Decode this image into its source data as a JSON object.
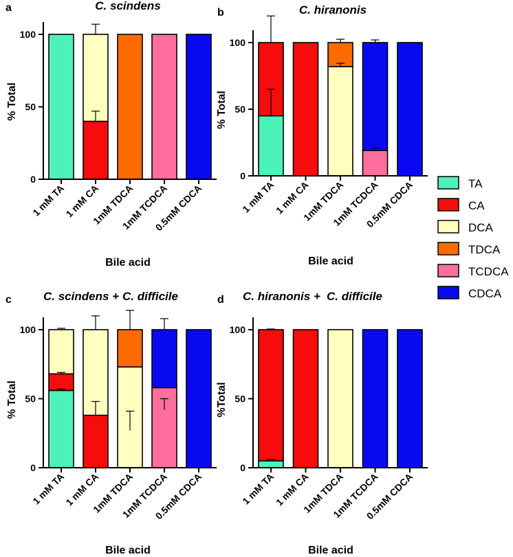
{
  "legend": [
    {
      "name": "TA",
      "color": "#4CF2B8"
    },
    {
      "name": "CA",
      "color": "#F50D0D"
    },
    {
      "name": "DCA",
      "color": "#FFFFBF"
    },
    {
      "name": "TDCA",
      "color": "#FF6A00"
    },
    {
      "name": "TCDCA",
      "color": "#FF6E9C"
    },
    {
      "name": "CDCA",
      "color": "#0A0AF2"
    }
  ],
  "chart_data": [
    {
      "type": "bar",
      "stacked": true,
      "panel": "a",
      "title": "C. scindens",
      "xlabel": "Bile acid",
      "ylabel": "% Total",
      "ylim": [
        0,
        100
      ],
      "yticks": [
        "0",
        "50",
        "100"
      ],
      "categories": [
        "1 mM TA",
        "1 mM CA",
        "1mM TDCA",
        "1mM TCDCA",
        "0.5mM CDCA"
      ],
      "series": [
        {
          "name": "TA",
          "values": [
            100,
            0,
            0,
            0,
            0
          ]
        },
        {
          "name": "CA",
          "values": [
            0,
            40,
            0,
            0,
            0
          ]
        },
        {
          "name": "DCA",
          "values": [
            0,
            60,
            0,
            0,
            0
          ]
        },
        {
          "name": "TDCA",
          "values": [
            0,
            0,
            100,
            0,
            0
          ]
        },
        {
          "name": "TCDCA",
          "values": [
            0,
            0,
            0,
            100,
            0
          ]
        },
        {
          "name": "CDCA",
          "values": [
            0,
            0,
            0,
            0,
            100
          ]
        }
      ],
      "errors": [
        {
          "category": 1,
          "value": 40,
          "err": 7
        },
        {
          "category": 1,
          "value": 100,
          "err": 7
        }
      ]
    },
    {
      "type": "bar",
      "stacked": true,
      "panel": "b",
      "title": "C. hiranonis",
      "xlabel": "Bile acid",
      "ylabel": "% Total",
      "ylim": [
        0,
        100
      ],
      "yticks": [
        "0",
        "50",
        "100"
      ],
      "categories": [
        "1 mM TA",
        "1 mM CA",
        "1mM TDCA",
        "1mM TCDCA",
        "0.5mM CDCA"
      ],
      "series": [
        {
          "name": "TA",
          "values": [
            45,
            0,
            0,
            0,
            0
          ]
        },
        {
          "name": "CA",
          "values": [
            55,
            100,
            0,
            0,
            0
          ]
        },
        {
          "name": "DCA",
          "values": [
            0,
            0,
            82,
            0,
            0
          ]
        },
        {
          "name": "TDCA",
          "values": [
            0,
            0,
            18,
            0,
            0
          ]
        },
        {
          "name": "TCDCA",
          "values": [
            0,
            0,
            0,
            19,
            0
          ]
        },
        {
          "name": "CDCA",
          "values": [
            0,
            0,
            0,
            81,
            100
          ]
        }
      ],
      "errors": [
        {
          "category": 0,
          "value": 45,
          "err": 20
        },
        {
          "category": 0,
          "value": 100,
          "err": 20
        },
        {
          "category": 2,
          "value": 82,
          "err": 2.5
        },
        {
          "category": 2,
          "value": 100,
          "err": 2.5
        },
        {
          "category": 3,
          "value": 19,
          "err": 2
        },
        {
          "category": 3,
          "value": 100,
          "err": 2
        }
      ]
    },
    {
      "type": "bar",
      "stacked": true,
      "panel": "c",
      "title_part1": "C. scindens +",
      "title_part2": "C. difficile",
      "xlabel": "Bile acid",
      "ylabel": "% Total",
      "ylim": [
        0,
        100
      ],
      "yticks": [
        "0",
        "50",
        "100"
      ],
      "categories": [
        "1 mM TA",
        "1 mM CA",
        "1mM TDCA",
        "1mM TCDCA",
        "0.5mM CDCA"
      ],
      "series": [
        {
          "name": "TA",
          "values": [
            56,
            0,
            0,
            0,
            0
          ]
        },
        {
          "name": "CA",
          "values": [
            12,
            38,
            0,
            0,
            0
          ]
        },
        {
          "name": "DCA",
          "values": [
            32,
            62,
            73,
            0,
            0
          ]
        },
        {
          "name": "TDCA",
          "values": [
            0,
            0,
            27,
            0,
            0
          ]
        },
        {
          "name": "TCDCA",
          "values": [
            0,
            0,
            0,
            58,
            0
          ]
        },
        {
          "name": "CDCA",
          "values": [
            0,
            0,
            0,
            42,
            100
          ]
        }
      ],
      "errors": [
        {
          "category": 0,
          "value": 56,
          "err": 1
        },
        {
          "category": 0,
          "value": 68,
          "err": 1
        },
        {
          "category": 0,
          "value": 100,
          "err": 1
        },
        {
          "category": 1,
          "value": 38,
          "err": 10
        },
        {
          "category": 1,
          "value": 100,
          "err": 10
        },
        {
          "category": 2,
          "value": 27,
          "err": 14
        },
        {
          "category": 2,
          "value": 100,
          "err": 14
        },
        {
          "category": 3,
          "value": 42,
          "err": 8
        },
        {
          "category": 3,
          "value": 100,
          "err": 8
        }
      ]
    },
    {
      "type": "bar",
      "stacked": true,
      "panel": "d",
      "title_part1": "C. hiranonis +",
      "title_part2": "C. difficile",
      "xlabel": "Bile acid",
      "ylabel": "%Total",
      "ylim": [
        0,
        100
      ],
      "yticks": [
        "0",
        "50",
        "100"
      ],
      "categories": [
        "1 mM TA",
        "1 mM CA",
        "1mM TDCA",
        "1mM TCDCA",
        "0.5mM CDCA"
      ],
      "series": [
        {
          "name": "TA",
          "values": [
            5,
            0,
            0,
            0,
            0
          ]
        },
        {
          "name": "CA",
          "values": [
            95,
            100,
            0,
            0,
            0
          ]
        },
        {
          "name": "DCA",
          "values": [
            0,
            0,
            100,
            0,
            0
          ]
        },
        {
          "name": "TDCA",
          "values": [
            0,
            0,
            0,
            0,
            0
          ]
        },
        {
          "name": "TCDCA",
          "values": [
            0,
            0,
            0,
            0,
            0
          ]
        },
        {
          "name": "CDCA",
          "values": [
            0,
            0,
            0,
            100,
            100
          ]
        }
      ],
      "errors": [
        {
          "category": 0,
          "value": 5,
          "err": 1
        },
        {
          "category": 0,
          "value": 100,
          "err": 0.5
        }
      ]
    }
  ]
}
